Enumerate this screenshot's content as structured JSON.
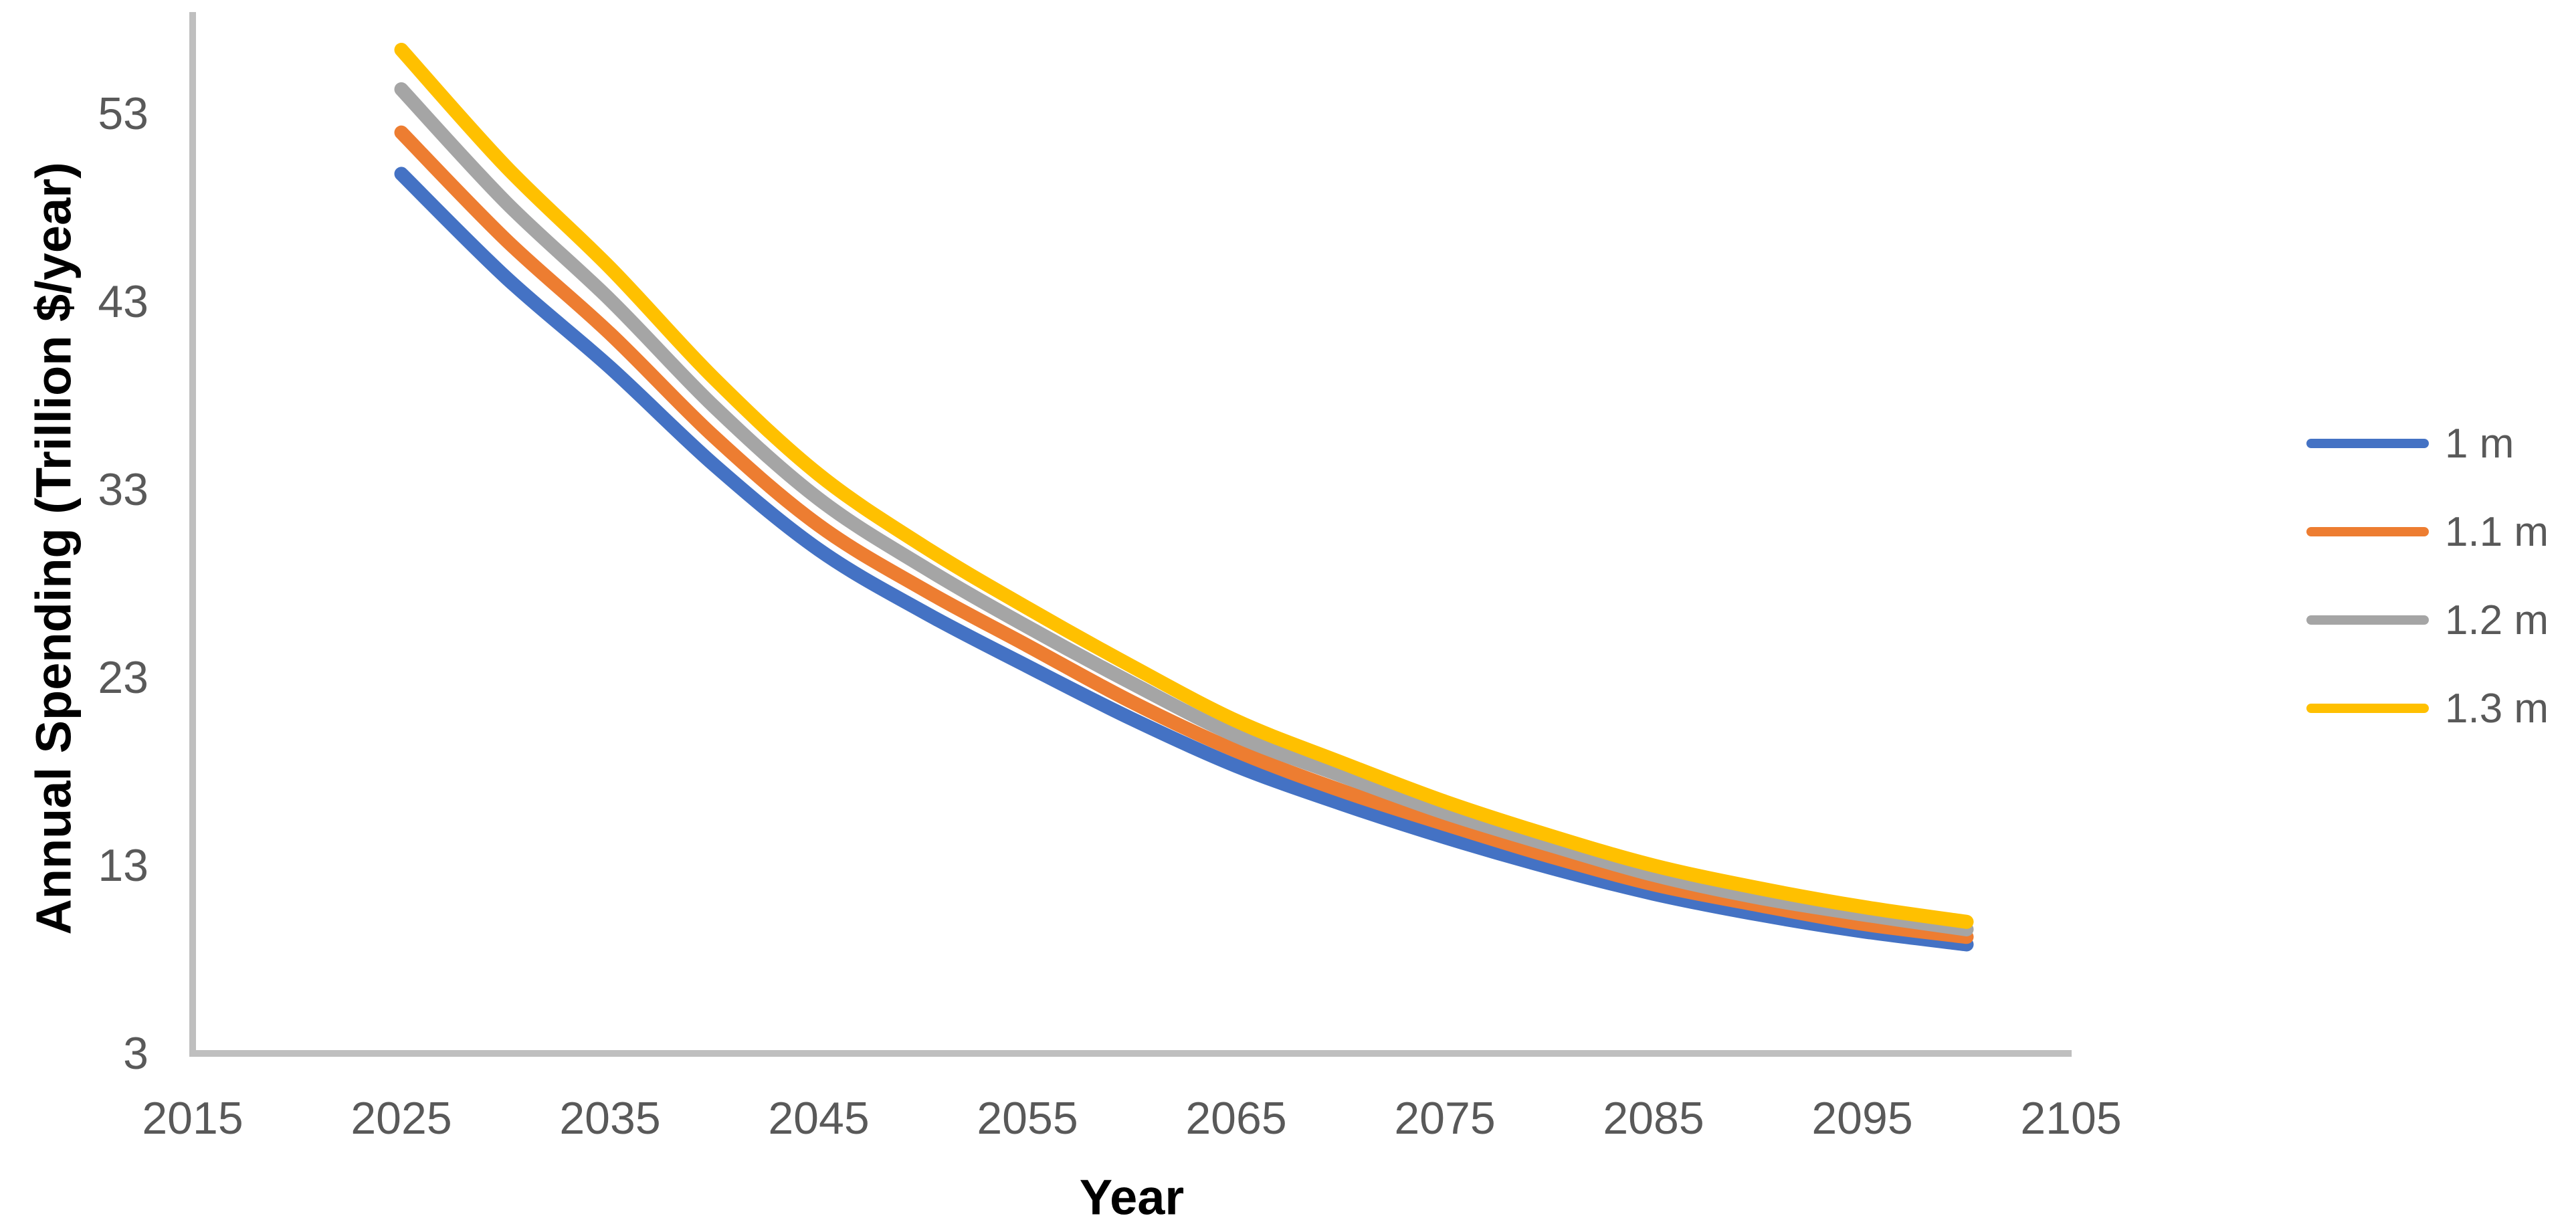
{
  "chart_data": {
    "type": "line",
    "title": "",
    "xlabel": "Year",
    "ylabel": "Annual Spending (Trillion $/year)",
    "x": [
      2025,
      2030,
      2035,
      2040,
      2045,
      2050,
      2055,
      2060,
      2065,
      2070,
      2075,
      2080,
      2085,
      2090,
      2095,
      2100
    ],
    "series": [
      {
        "name": "1 m",
        "color": "#4472C4",
        "values": [
          49.8,
          44.3,
          39.5,
          34.3,
          29.8,
          26.5,
          23.6,
          20.8,
          18.3,
          16.3,
          14.5,
          12.9,
          11.5,
          10.4,
          9.5,
          8.8
        ]
      },
      {
        "name": "1.1 m",
        "color": "#ED7D31",
        "values": [
          52.0,
          46.3,
          41.3,
          35.8,
          31.1,
          27.7,
          24.7,
          21.7,
          19.1,
          17.0,
          15.2,
          13.5,
          12.0,
          10.9,
          9.9,
          9.2
        ]
      },
      {
        "name": "1.2 m",
        "color": "#A5A5A5",
        "values": [
          54.3,
          48.3,
          43.1,
          37.4,
          32.5,
          28.9,
          25.7,
          22.7,
          19.9,
          17.8,
          15.8,
          14.1,
          12.5,
          11.3,
          10.4,
          9.6
        ]
      },
      {
        "name": "1.3 m",
        "color": "#FFC000",
        "values": [
          56.4,
          50.2,
          44.8,
          38.9,
          33.8,
          30.0,
          26.7,
          23.6,
          20.7,
          18.5,
          16.4,
          14.6,
          13.0,
          11.8,
          10.8,
          10.0
        ]
      }
    ],
    "x_ticks": [
      2015,
      2025,
      2035,
      2045,
      2055,
      2065,
      2075,
      2085,
      2095,
      2105
    ],
    "y_ticks": [
      3,
      13,
      23,
      33,
      43,
      53
    ],
    "xlim": [
      2015,
      2105
    ],
    "ylim": [
      3,
      58
    ],
    "grid": false,
    "legend_position": "right",
    "axis_color": "#BFBFBF",
    "tick_label_color": "#595959",
    "axis_title_color": "#000000"
  }
}
